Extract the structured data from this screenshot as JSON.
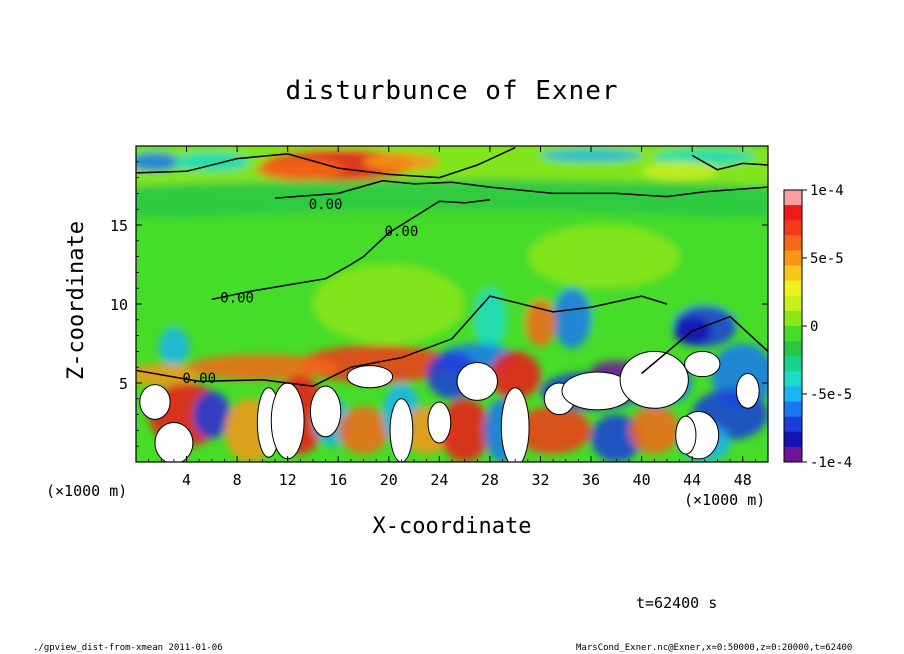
{
  "chart_data": {
    "type": "heatmap",
    "title": "disturbunce of Exner",
    "xlabel": "X-coordinate",
    "ylabel": "Z-coordinate",
    "x_unit": "(×1000 m)",
    "y_unit": "(×1000 m)",
    "xlim": [
      0,
      50
    ],
    "ylim": [
      0,
      20
    ],
    "x_ticks": [
      4,
      8,
      12,
      16,
      20,
      24,
      28,
      32,
      36,
      40,
      44,
      48
    ],
    "y_ticks": [
      5,
      10,
      15
    ],
    "colorbar": {
      "min": -0.0001,
      "max": 0.0001,
      "tick_values": [
        0.0001,
        5e-05,
        0,
        -5e-05,
        -0.0001
      ],
      "tick_labels": [
        "1e-4",
        "5e-5",
        "0",
        "-5e-5",
        "-1e-4"
      ],
      "colors": [
        "#f7a0a0",
        "#ee1a1a",
        "#f23a1a",
        "#f5681a",
        "#f7961a",
        "#f5c81a",
        "#f0f01a",
        "#c8f01a",
        "#8ce61a",
        "#46dc28",
        "#28c846",
        "#1ad28c",
        "#1adcc8",
        "#1ab4f0",
        "#1a78f0",
        "#1a3cdc",
        "#1414b4",
        "#6e1496"
      ]
    },
    "contour_labels": [
      "0.00",
      "0.00",
      "0.00",
      "0.00"
    ],
    "time_label": "t=62400 s",
    "footer_left": "./gpview_dist-from-xmean  2011-01-06",
    "footer_right": "MarsCond_Exner.nc@Exner,x=0:50000,z=0:20000,t=62400"
  },
  "colors": {
    "background": "#ffffff",
    "positive_strong": "#ee1a1a",
    "neutral": "#46dc28",
    "negative_strong": "#1a3cdc",
    "contour_line": "#000000"
  }
}
